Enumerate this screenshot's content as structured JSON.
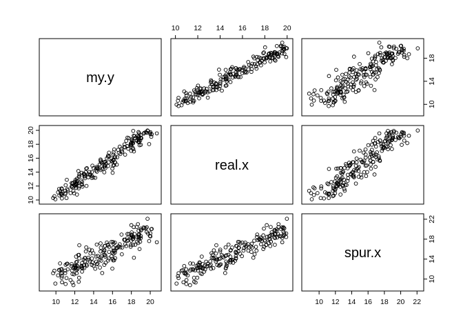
{
  "chart_data": {
    "type": "scatter",
    "subtype": "pairs-matrix",
    "variables": [
      "my.y",
      "real.x",
      "spur.x"
    ],
    "n_points": 200,
    "ranges": {
      "my.y": [
        8.6,
        20.8
      ],
      "real.x": [
        9.9,
        20.2
      ],
      "spur.x": [
        8.3,
        22.4
      ]
    },
    "ticks": {
      "my.y": [
        "10",
        "12",
        "14",
        "16",
        "18",
        "20"
      ],
      "real.x": [
        "10",
        "12",
        "14",
        "16",
        "18",
        "20"
      ],
      "spur.x": [
        "10",
        "12",
        "14",
        "16",
        "18",
        "20",
        "22"
      ]
    },
    "axis_placement": {
      "my.y": "bottom (column 1)",
      "real.x": "top (column 2), left (row 2)",
      "spur.x": "bottom (column 3), right (row 3)"
    },
    "right_axis_ticks_upper_panel": [
      "10",
      "14",
      "18"
    ],
    "right_axis_ticks_lower_panel": [
      "10",
      "14",
      "18",
      "22"
    ],
    "relationships": [
      {
        "x": "my.y",
        "y": "real.x",
        "trend": "strong positive, linear"
      },
      {
        "x": "my.y",
        "y": "spur.x",
        "trend": "positive, linear"
      },
      {
        "x": "real.x",
        "y": "spur.x",
        "trend": "strong positive, linear"
      }
    ],
    "grid": false,
    "legend": "none",
    "marker": "open circle"
  }
}
